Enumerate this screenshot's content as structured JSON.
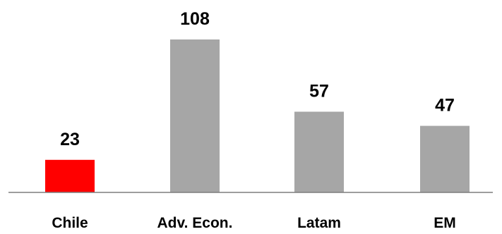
{
  "chart_data": {
    "type": "bar",
    "title": "",
    "xlabel": "",
    "ylabel": "",
    "categories": [
      "Chile",
      "Adv. Econ.",
      "Latam",
      "EM"
    ],
    "values": [
      23,
      108,
      57,
      47
    ],
    "value_labels": [
      "23",
      "108",
      "57",
      "47"
    ],
    "ylim": [
      0,
      108
    ],
    "grid": false,
    "legend": "none",
    "bar_colors": [
      "#ff0000",
      "#a6a6a6",
      "#a6a6a6",
      "#a6a6a6"
    ],
    "axis_color": "#7f7f7f"
  }
}
